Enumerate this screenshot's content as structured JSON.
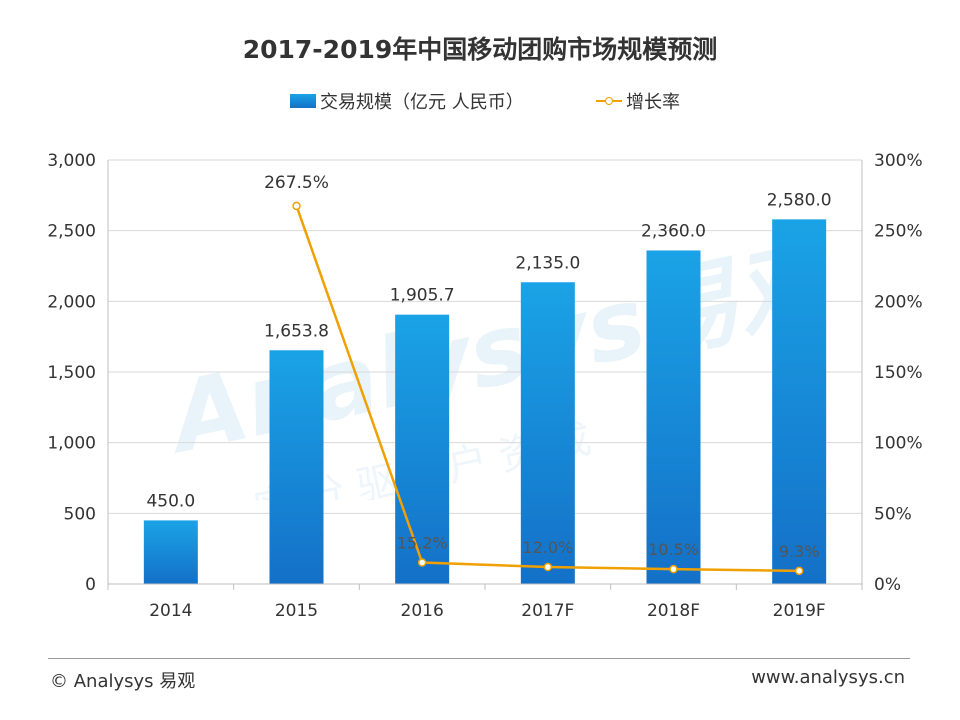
{
  "chart_data": {
    "type": "bar",
    "title": "2017-2019年中国移动团购市场规模预测",
    "categories": [
      "2014",
      "2015",
      "2016",
      "2017F",
      "2018F",
      "2019F"
    ],
    "series": [
      {
        "name": "交易规模（亿元 人民币）",
        "type": "bar",
        "axis": "left",
        "values": [
          450.0,
          1653.8,
          1905.7,
          2135.0,
          2360.0,
          2580.0
        ],
        "labels": [
          "450.0",
          "1,653.8",
          "1,905.7",
          "2,135.0",
          "2,360.0",
          "2,580.0"
        ]
      },
      {
        "name": "增长率",
        "type": "line",
        "axis": "right",
        "values": [
          null,
          267.5,
          15.2,
          12.0,
          10.5,
          9.3
        ],
        "labels": [
          "",
          "267.5%",
          "15.2%",
          "12.0%",
          "10.5%",
          "9.3%"
        ]
      }
    ],
    "ylim": [
      0,
      3000
    ],
    "y2lim": [
      0,
      300
    ],
    "yticks": [
      "0",
      "500",
      "1,000",
      "1,500",
      "2,000",
      "2,500",
      "3,000"
    ],
    "y2ticks": [
      "0%",
      "50%",
      "100%",
      "150%",
      "200%",
      "250%",
      "300%"
    ],
    "grid": true,
    "legend": "top-center",
    "colors": {
      "bar_top": "#1aa3e6",
      "bar_bottom": "#1470c7",
      "line": "#f0a000",
      "grid": "#d9d9d9"
    }
  },
  "footer": {
    "copyright": "© Analysys 易观",
    "url": "www.analysys.cn"
  },
  "watermark": {
    "brand": "Analysys易观",
    "slogan": "实 分 驱动 户 资 成"
  }
}
